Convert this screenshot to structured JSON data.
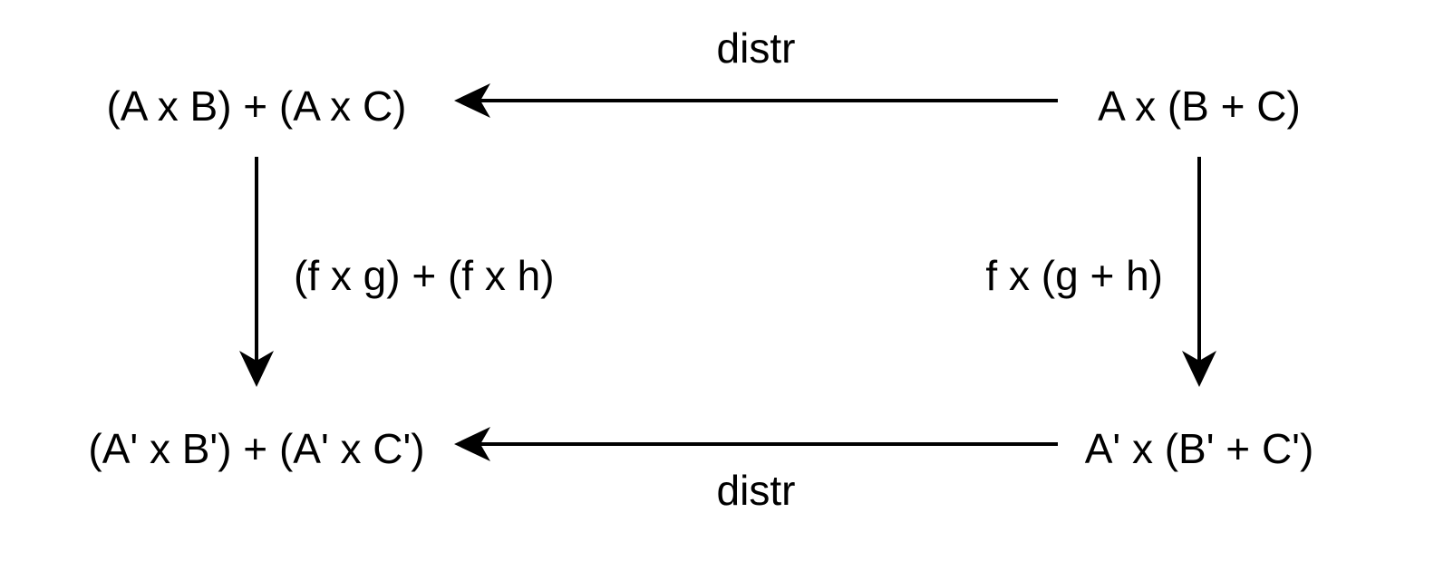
{
  "diagram": {
    "nodes": {
      "top_left": "(A x B) + (A x C)",
      "top_right": "A x (B + C)",
      "bottom_left": "(A' x B') + (A' x C')",
      "bottom_right": "A' x (B' + C')"
    },
    "edges": {
      "top": "distr",
      "bottom": "distr",
      "left": "(f x g) + (f x h)",
      "right": "f x (g + h)"
    },
    "colors": {
      "ink": "#000000",
      "background": "#ffffff"
    }
  }
}
